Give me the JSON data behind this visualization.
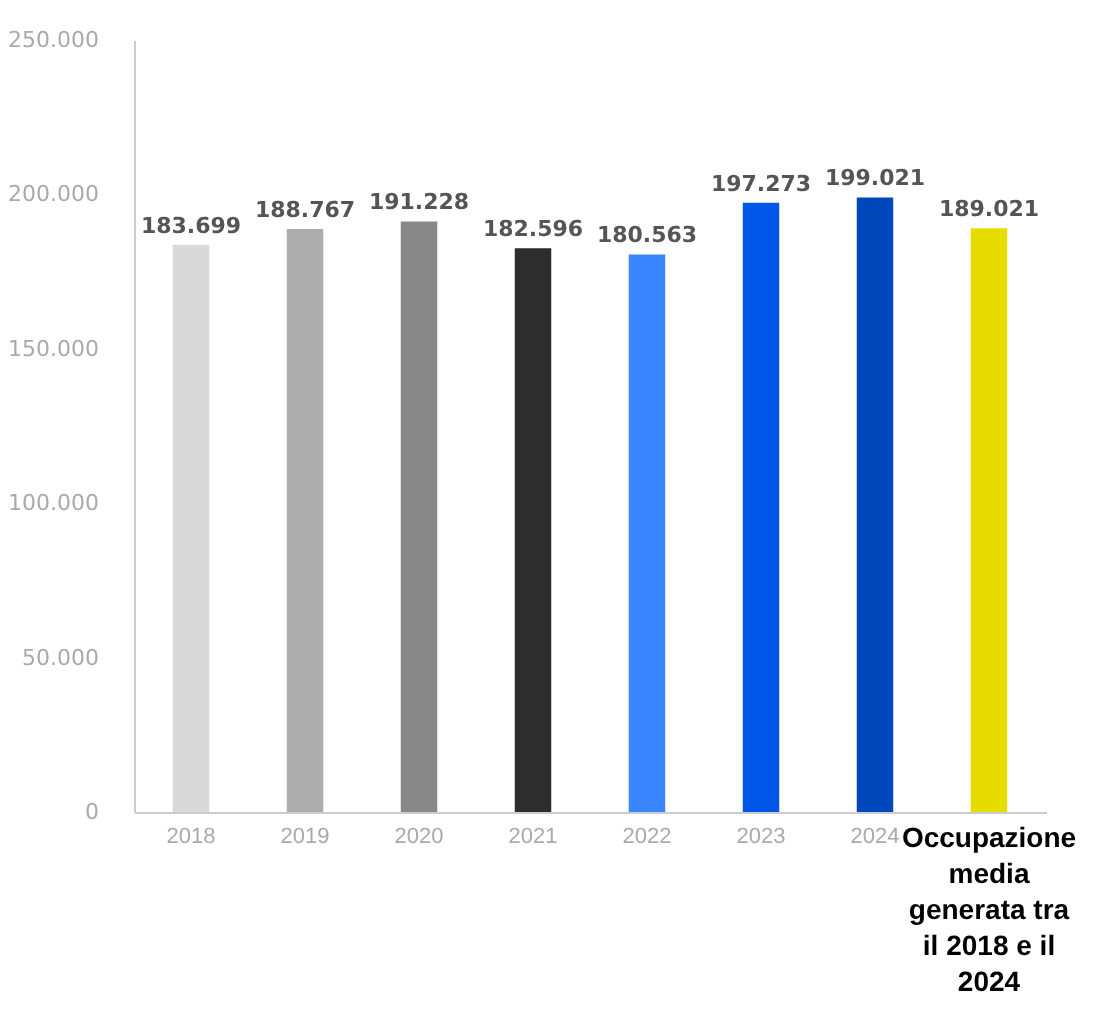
{
  "chart_data": {
    "type": "bar",
    "categories": [
      "2018",
      "2019",
      "2020",
      "2021",
      "2022",
      "2023",
      "2024",
      "Occupazione media generata tra il 2018 e il 2024"
    ],
    "values": [
      183699,
      188767,
      191228,
      182596,
      180563,
      197273,
      199021,
      189021
    ],
    "colors": [
      "#d9d9d9",
      "#adadad",
      "#888888",
      "#2d2d2d",
      "#3a86ff",
      "#0057e7",
      "#0047bb",
      "#e6dc00"
    ],
    "ylim": [
      0,
      250000
    ],
    "yticks": [
      {
        "value": 0,
        "label": "0"
      },
      {
        "value": 50000,
        "label": "50.000"
      },
      {
        "value": 100000,
        "label": "100.000"
      },
      {
        "value": 150000,
        "label": "150.000"
      },
      {
        "value": 200000,
        "label": "200.000"
      },
      {
        "value": 250000,
        "label": "250.000"
      }
    ],
    "value_labels": [
      "183.699",
      "188.767",
      "191.228",
      "182.596",
      "180.563",
      "197.273",
      "199.021",
      "189.021"
    ],
    "grid": false,
    "legend": false
  }
}
